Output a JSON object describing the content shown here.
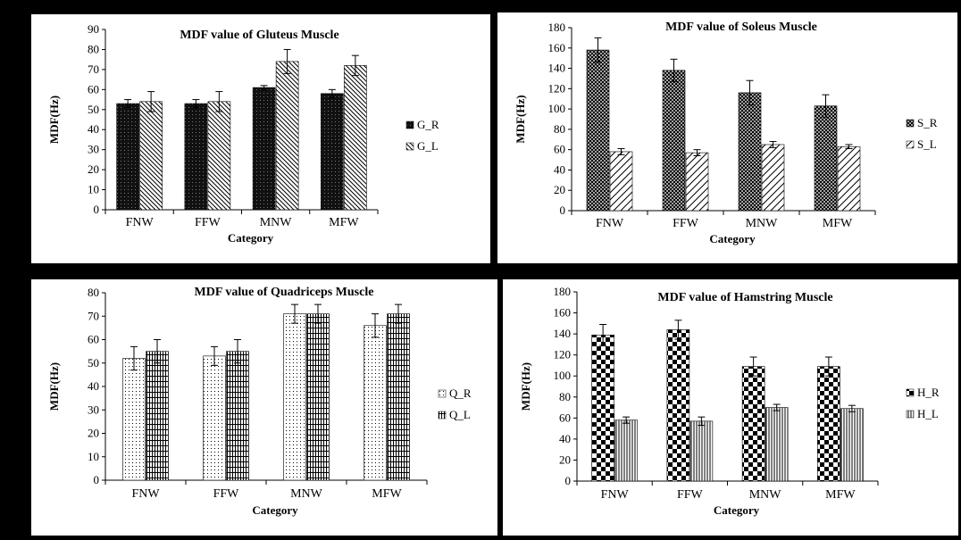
{
  "chart_data": [
    {
      "type": "bar",
      "title": "MDF value of Gluteus Muscle",
      "xlabel": "Category",
      "ylabel": "MDF(Hz)",
      "categories": [
        "FNW",
        "FFW",
        "MNW",
        "MFW"
      ],
      "ylim": [
        0,
        90
      ],
      "yticks": [
        0,
        10,
        20,
        30,
        40,
        50,
        60,
        70,
        80,
        90
      ],
      "legend": "right",
      "series": [
        {
          "name": "G_R",
          "values": [
            53,
            53,
            61,
            58
          ],
          "errors": [
            2,
            2,
            1,
            2
          ],
          "pattern": "dark",
          "color": "#000000"
        },
        {
          "name": "G_L",
          "values": [
            54,
            54,
            74,
            72
          ],
          "errors": [
            5,
            5,
            6,
            5
          ],
          "pattern": "diag-left",
          "color": "#000000"
        }
      ]
    },
    {
      "type": "bar",
      "title": "MDF value of Soleus Muscle",
      "xlabel": "Category",
      "ylabel": "MDF(Hz)",
      "categories": [
        "FNW",
        "FFW",
        "MNW",
        "MFW"
      ],
      "ylim": [
        0,
        180
      ],
      "yticks": [
        0,
        20,
        40,
        60,
        80,
        100,
        120,
        140,
        160,
        180
      ],
      "legend": "right",
      "series": [
        {
          "name": "S_R",
          "values": [
            158,
            138,
            116,
            103
          ],
          "errors": [
            12,
            11,
            12,
            11
          ],
          "pattern": "crosshatch",
          "color": "#000000"
        },
        {
          "name": "S_L",
          "values": [
            58,
            57,
            65,
            63
          ],
          "errors": [
            3,
            3,
            3,
            2
          ],
          "pattern": "diag-right",
          "color": "#000000"
        }
      ]
    },
    {
      "type": "bar",
      "title": "MDF value of Quadriceps Muscle",
      "xlabel": "Category",
      "ylabel": "MDF(Hz)",
      "categories": [
        "FNW",
        "FFW",
        "MNW",
        "MFW"
      ],
      "ylim": [
        0,
        80
      ],
      "yticks": [
        0,
        10,
        20,
        30,
        40,
        50,
        60,
        70,
        80
      ],
      "legend": "right",
      "series": [
        {
          "name": "Q_R",
          "values": [
            52,
            53,
            71,
            66
          ],
          "errors": [
            5,
            4,
            4,
            5
          ],
          "pattern": "dots",
          "color": "#000000"
        },
        {
          "name": "Q_L",
          "values": [
            55,
            55,
            71,
            71
          ],
          "errors": [
            5,
            5,
            4,
            4
          ],
          "pattern": "grid",
          "color": "#000000"
        }
      ]
    },
    {
      "type": "bar",
      "title": "MDF value of Hamstring Muscle",
      "xlabel": "Category",
      "ylabel": "MDF(Hz)",
      "categories": [
        "FNW",
        "FFW",
        "MNW",
        "MFW"
      ],
      "ylim": [
        0,
        180
      ],
      "yticks": [
        0,
        20,
        40,
        60,
        80,
        100,
        120,
        140,
        160,
        180
      ],
      "legend": "right",
      "series": [
        {
          "name": "H_R",
          "values": [
            139,
            144,
            109,
            109
          ],
          "errors": [
            10,
            9,
            9,
            9
          ],
          "pattern": "checker",
          "color": "#000000"
        },
        {
          "name": "H_L",
          "values": [
            58,
            57,
            70,
            69
          ],
          "errors": [
            3,
            4,
            3,
            3
          ],
          "pattern": "vlines",
          "color": "#000000"
        }
      ]
    }
  ]
}
